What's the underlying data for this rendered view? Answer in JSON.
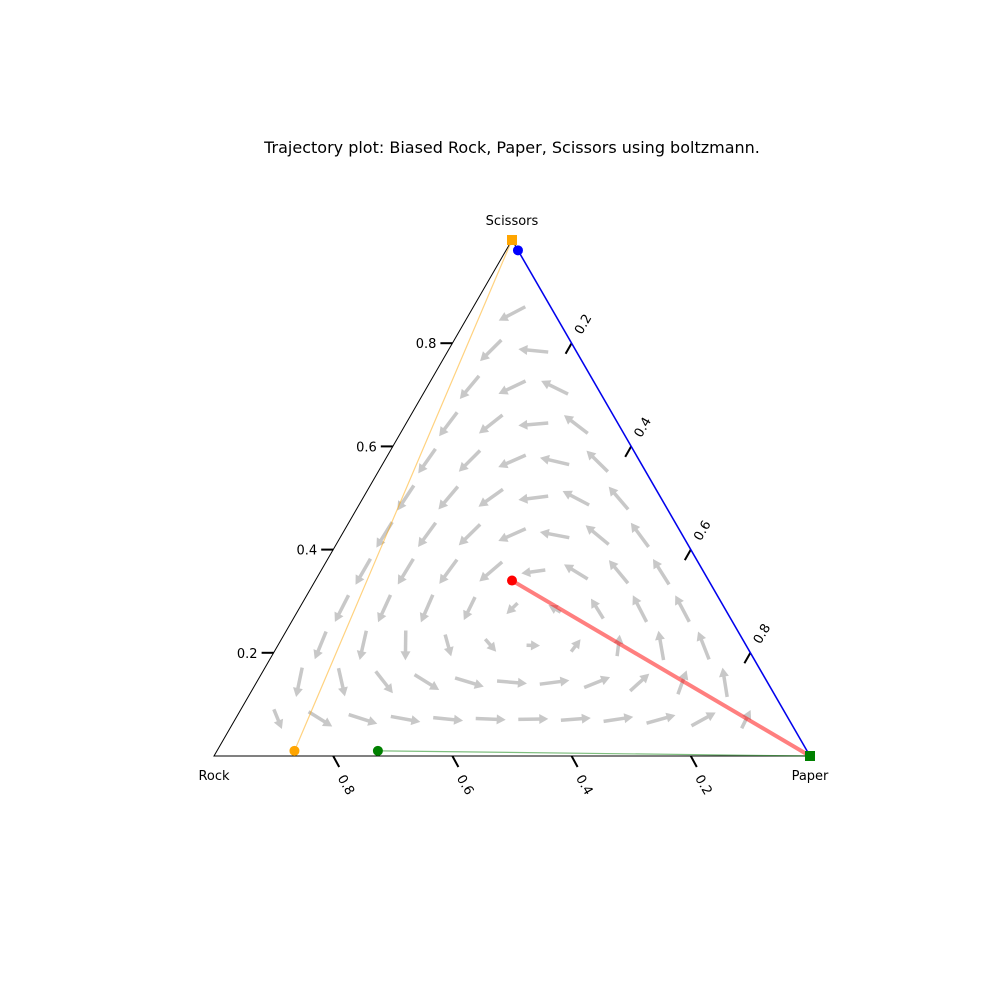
{
  "chart_data": {
    "type": "scatter",
    "subtype": "ternary-trajectory",
    "title": "Trajectory plot: Biased Rock, Paper, Scissors using boltzmann.",
    "corners": {
      "rock": "Rock",
      "paper": "Paper",
      "scissors": "Scissors"
    },
    "ticks": {
      "left_axis": [
        "0.2",
        "0.4",
        "0.6",
        "0.8"
      ],
      "right_axis": [
        "0.2",
        "0.4",
        "0.6",
        "0.8"
      ],
      "bottom_axis": [
        "0.8",
        "0.6",
        "0.4",
        "0.2"
      ]
    },
    "vector_field": {
      "color": "#c8c8c8",
      "shown": true
    },
    "trajectories": [
      {
        "color": "#ff0000",
        "line_alpha": 0.5,
        "start": {
          "rock": 0.33,
          "paper": 0.33,
          "scissors": 0.34
        },
        "end": {
          "rock": 0.0,
          "paper": 1.0,
          "scissors": 0.0
        }
      },
      {
        "color": "#0000ff",
        "line_alpha": 0.9,
        "start": {
          "rock": 0.0,
          "paper": 0.02,
          "scissors": 0.98
        },
        "end": {
          "rock": 0.0,
          "paper": 1.0,
          "scissors": 0.0
        }
      },
      {
        "color": "#008000",
        "line_alpha": 0.5,
        "start": {
          "rock": 0.72,
          "paper": 0.27,
          "scissors": 0.01
        },
        "end": {
          "rock": 0.0,
          "paper": 1.0,
          "scissors": 0.0
        }
      },
      {
        "color": "#ffa500",
        "line_alpha": 0.5,
        "start": {
          "rock": 0.86,
          "paper": 0.13,
          "scissors": 0.01
        },
        "end": {
          "rock": 0.0,
          "paper": 0.0,
          "scissors": 1.0
        }
      }
    ]
  }
}
